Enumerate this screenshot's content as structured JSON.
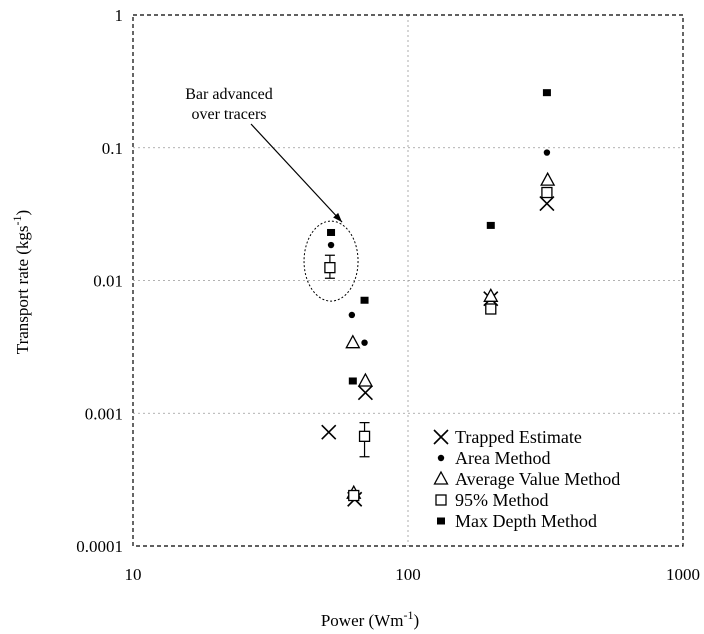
{
  "chart_data": {
    "type": "scatter",
    "xlabel": "Power (Wm",
    "xlabel_sup": "-1",
    "xlabel_end": ")",
    "ylabel": "Transport rate (kgs",
    "ylabel_sup": "-1",
    "ylabel_end": ")",
    "x_scale": "log",
    "y_scale": "log",
    "xlim": [
      10,
      1000
    ],
    "ylim": [
      0.0001,
      1
    ],
    "x_ticks": [
      10,
      100,
      1000
    ],
    "x_tick_labels": [
      "10",
      "100",
      "1000"
    ],
    "y_ticks": [
      0.0001,
      0.001,
      0.01,
      0.1,
      1
    ],
    "y_tick_labels": [
      "0.0001",
      "0.001",
      "0.01",
      "0.1",
      "1"
    ],
    "grid": true,
    "legend_position": "bottom-right",
    "series": [
      {
        "name": "Trapped Estimate",
        "marker": "x",
        "points": [
          [
            51.5,
            0.00072
          ],
          [
            70,
            0.00143
          ],
          [
            64,
            0.000225
          ],
          [
            200,
            0.0073
          ],
          [
            320,
            0.038
          ]
        ]
      },
      {
        "name": "Area Method",
        "marker": "circle",
        "points": [
          [
            52.5,
            0.0185
          ],
          [
            62.5,
            0.0055
          ],
          [
            69.5,
            0.0034
          ],
          [
            320,
            0.092
          ]
        ]
      },
      {
        "name": "Average Value Method",
        "marker": "triangle",
        "points": [
          [
            63,
            0.0034
          ],
          [
            70,
            0.00175
          ],
          [
            63.5,
            0.00025
          ],
          [
            200,
            0.0076
          ],
          [
            322,
            0.057
          ]
        ]
      },
      {
        "name": "95% Method",
        "marker": "square",
        "points": [
          [
            52,
            0.0125
          ],
          [
            69.5,
            0.00067
          ],
          [
            63.5,
            0.00024
          ],
          [
            200,
            0.0061
          ],
          [
            320,
            0.046
          ]
        ],
        "error_bars": [
          [
            0.0104,
            0.0155
          ],
          [
            0.00047,
            0.00085
          ],
          null,
          null,
          null
        ]
      },
      {
        "name": "Max Depth Method",
        "marker": "filled-square",
        "points": [
          [
            52.5,
            0.023
          ],
          [
            69.5,
            0.0071
          ],
          [
            63,
            0.00175
          ],
          [
            200,
            0.026
          ],
          [
            320,
            0.26
          ]
        ]
      }
    ],
    "annotation": {
      "lines": [
        "Bar advanced",
        "over tracers"
      ],
      "target": [
        52.5,
        0.014
      ]
    }
  }
}
